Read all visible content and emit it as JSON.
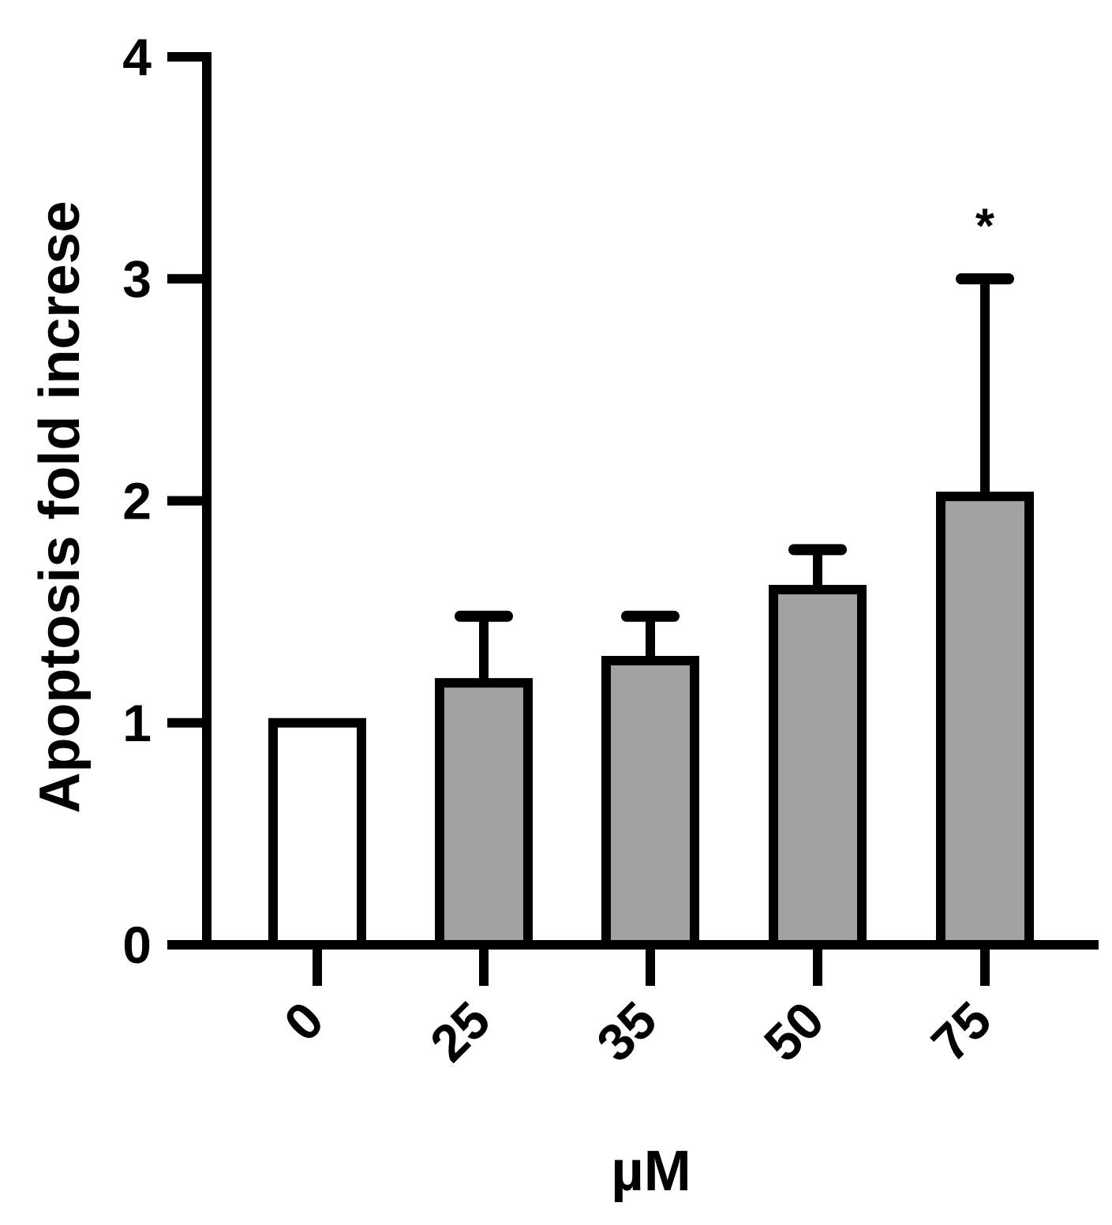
{
  "chart_data": {
    "type": "bar",
    "title": "",
    "xlabel": "µM",
    "ylabel": "Apoptosis fold increse",
    "categories": [
      "0",
      "25",
      "35",
      "50",
      "75"
    ],
    "values": [
      1.0,
      1.18,
      1.28,
      1.6,
      2.02
    ],
    "errors": [
      0.0,
      0.3,
      0.2,
      0.18,
      0.98
    ],
    "annotations": [
      "",
      "",
      "",
      "",
      "*"
    ],
    "ylim": [
      0,
      4
    ],
    "yticks": [
      "0",
      "1",
      "2",
      "3",
      "4"
    ],
    "grid": false,
    "colors": {
      "control": "#ffffff",
      "treated": "#a2a1a6",
      "stroke": "#000000"
    }
  }
}
